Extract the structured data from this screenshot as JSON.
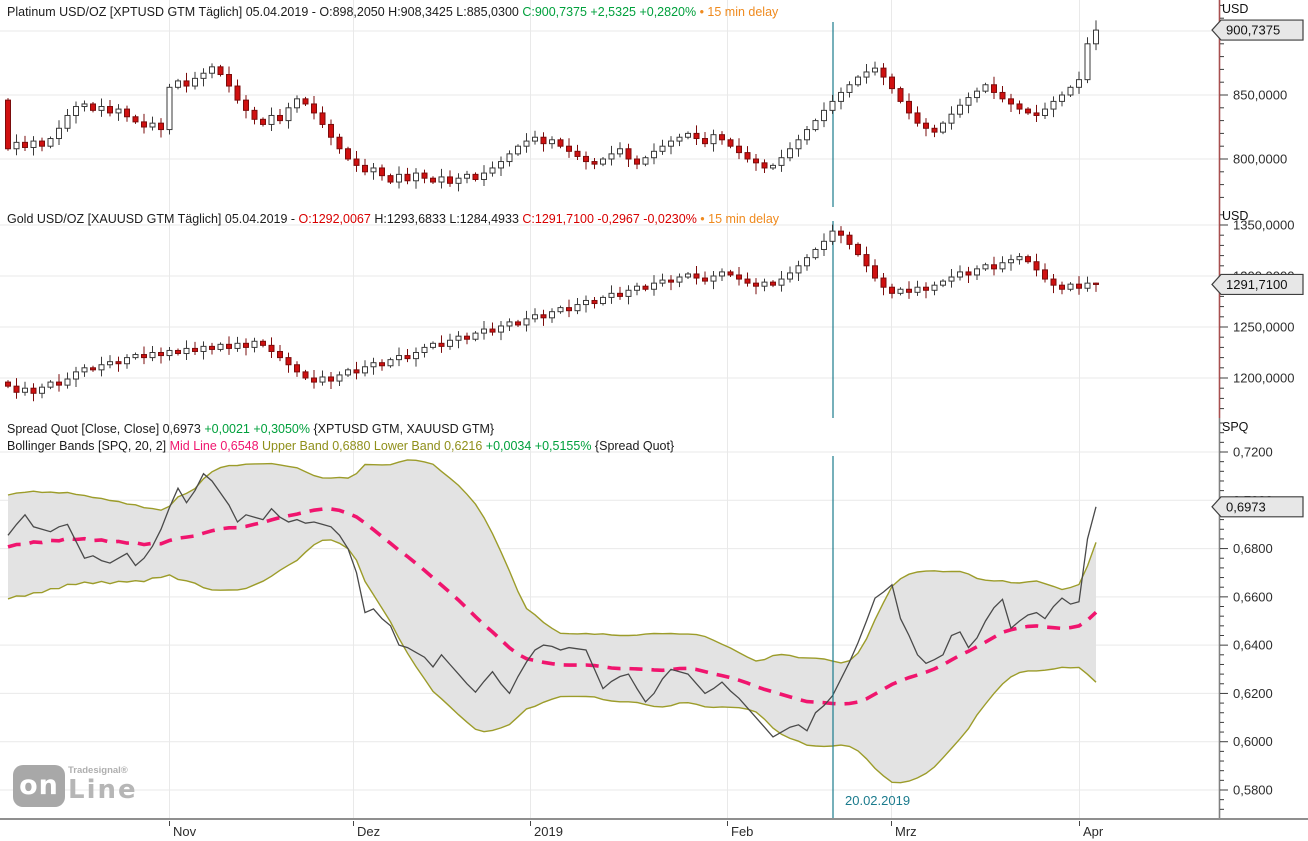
{
  "colors": {
    "black": "#1c1c1c",
    "green": "#00a03c",
    "red": "#d80000",
    "orange": "#ef8a1e",
    "pink": "#f0156e",
    "olive": "#8f8f1a",
    "teal": "#1b7b8d",
    "candle_up_fill": "#ffffff",
    "candle_up_stroke": "#3a3a3a",
    "candle_down_fill": "#d01010",
    "candle_down_stroke": "#7a0c0c",
    "band_fill": "#e3e3e3",
    "band_line": "#9c9c2a",
    "mid_line": "#f0156e",
    "spread_line": "#4a4a4a",
    "grid": "#e9e9e9",
    "axis_line_price": "#a85050",
    "axis_line_spread": "#808080",
    "tag_fill": "#e7e7e7",
    "tag_stroke": "#3f3f3f"
  },
  "panels": [
    {
      "name": "platinum",
      "unit": "USD",
      "header": [
        [
          {
            "t": "Platinum USD/OZ [XPTUSD GTM Täglich] 05.04.2019 - O:898,2050 H:908,3425 L:885,0300 ",
            "c": "black"
          },
          {
            "t": "C:900,7375 +2,5325 +0,2820%",
            "c": "green"
          },
          {
            "t": " • 15 min delay",
            "c": "orange"
          }
        ]
      ],
      "y_ticks": [
        {
          "v": 850,
          "label": "850,0000"
        },
        {
          "v": 800,
          "label": "800,0000"
        }
      ],
      "price_tag": {
        "value": 900.7375,
        "label": "900,7375"
      }
    },
    {
      "name": "gold",
      "unit": "USD",
      "header": [
        [
          {
            "t": "Gold USD/OZ [XAUUSD GTM Täglich] 05.04.2019 - ",
            "c": "black"
          },
          {
            "t": "O:1292,0067",
            "c": "red"
          },
          {
            "t": " H:1293,6833 L:1284,4933 ",
            "c": "black"
          },
          {
            "t": "C:1291,7100 -0,2967 -0,0230%",
            "c": "red"
          },
          {
            "t": " • 15 min delay",
            "c": "orange"
          }
        ]
      ],
      "y_ticks": [
        {
          "v": 1350,
          "label": "1350,0000"
        },
        {
          "v": 1300,
          "label": "1300,0000"
        },
        {
          "v": 1250,
          "label": "1250,0000"
        },
        {
          "v": 1200,
          "label": "1200,0000"
        }
      ],
      "price_tag": {
        "value": 1291.71,
        "label": "1291,7100"
      }
    },
    {
      "name": "spread",
      "unit": "SPQ",
      "header": [
        [
          {
            "t": "Spread Quot [Close, Close] 0,6973 ",
            "c": "black"
          },
          {
            "t": "+0,0021 +0,3050%",
            "c": "green"
          },
          {
            "t": " {XPTUSD GTM, XAUUSD GTM}",
            "c": "black"
          }
        ],
        [
          {
            "t": "Bollinger Bands [SPQ, 20, 2] ",
            "c": "black"
          },
          {
            "t": "Mid Line 0,6548",
            "c": "pink"
          },
          {
            "t": " Upper Band 0,6880",
            "c": "olive"
          },
          {
            "t": " Lower Band 0,6216",
            "c": "olive"
          },
          {
            "t": " +0,0034 +0,5155%",
            "c": "green"
          },
          {
            "t": " {Spread Quot}",
            "c": "black"
          }
        ]
      ],
      "y_ticks": [
        {
          "v": 0.72,
          "label": "0,7200"
        },
        {
          "v": 0.7,
          "label": "0,7000"
        },
        {
          "v": 0.68,
          "label": "0,6800"
        },
        {
          "v": 0.66,
          "label": "0,6600"
        },
        {
          "v": 0.64,
          "label": "0,6400"
        },
        {
          "v": 0.62,
          "label": "0,6200"
        },
        {
          "v": 0.6,
          "label": "0,6000"
        },
        {
          "v": 0.58,
          "label": "0,5800"
        }
      ],
      "price_tag": {
        "value": 0.6973,
        "label": "0,6973"
      }
    }
  ],
  "x_axis": {
    "labels": [
      "Nov",
      "Dez",
      "2019",
      "Feb",
      "Mrz",
      "Apr"
    ]
  },
  "event_line": {
    "label": "20.02.2019",
    "date": "20.02.2019"
  },
  "logo": {
    "badge": "on",
    "brand": "Tradesignal®",
    "word": "Line"
  },
  "chart_data": [
    {
      "type": "candlestick",
      "title": "Platinum USD/OZ",
      "symbol": "XPTUSD GTM",
      "interval": "Täglich",
      "date": "05.04.2019",
      "open": 898.205,
      "high": 908.3425,
      "low": 885.03,
      "close": 900.7375,
      "change": 2.5325,
      "change_pct": 0.282,
      "ylabel": "USD",
      "ylim": [
        763,
        907
      ],
      "x_tick_labels": [
        "Nov",
        "Dez",
        "2019",
        "Feb",
        "Mrz",
        "Apr"
      ],
      "first_open": 846,
      "closes": [
        808,
        813,
        809,
        814,
        810,
        816,
        824,
        834,
        841,
        843,
        838,
        841,
        836,
        839,
        833,
        829,
        825,
        828,
        823,
        856,
        861,
        857,
        863,
        867,
        872,
        866,
        857,
        846,
        838,
        831,
        827,
        834,
        830,
        840,
        847,
        843,
        836,
        827,
        817,
        808,
        800,
        795,
        790,
        793,
        787,
        782,
        788,
        783,
        789,
        785,
        782,
        786,
        781,
        785,
        788,
        784,
        789,
        793,
        798,
        804,
        810,
        814,
        817,
        812,
        815,
        810,
        806,
        802,
        798,
        796,
        800,
        804,
        808,
        800,
        796,
        801,
        806,
        810,
        814,
        817,
        820,
        816,
        812,
        819,
        815,
        810,
        805,
        800,
        797,
        793,
        795,
        801,
        808,
        815,
        823,
        830,
        838,
        845,
        852,
        858,
        864,
        868,
        871,
        864,
        855,
        845,
        836,
        828,
        824,
        821,
        828,
        835,
        842,
        848,
        853,
        858,
        852,
        847,
        843,
        839,
        836,
        834,
        839,
        845,
        850,
        856,
        862,
        890,
        900.7
      ]
    },
    {
      "type": "candlestick",
      "title": "Gold USD/OZ",
      "symbol": "XAUUSD GTM",
      "interval": "Täglich",
      "date": "05.04.2019",
      "open": 1292.0067,
      "high": 1293.6833,
      "low": 1284.4933,
      "close": 1291.71,
      "change": -0.2967,
      "change_pct": -0.023,
      "ylabel": "USD",
      "ylim": [
        1162,
        1353
      ],
      "x_tick_labels": [
        "Nov",
        "Dez",
        "2019",
        "Feb",
        "Mrz",
        "Apr"
      ],
      "first_open": 1196,
      "closes": [
        1192,
        1186,
        1190,
        1185,
        1191,
        1196,
        1193,
        1199,
        1206,
        1210,
        1208,
        1213,
        1216,
        1214,
        1220,
        1223,
        1220,
        1225,
        1222,
        1227,
        1224,
        1229,
        1226,
        1231,
        1228,
        1233,
        1229,
        1234,
        1230,
        1236,
        1232,
        1226,
        1220,
        1213,
        1206,
        1200,
        1196,
        1201,
        1197,
        1203,
        1208,
        1205,
        1211,
        1215,
        1212,
        1218,
        1222,
        1219,
        1225,
        1230,
        1234,
        1231,
        1237,
        1241,
        1238,
        1244,
        1248,
        1245,
        1251,
        1255,
        1252,
        1258,
        1262,
        1259,
        1265,
        1269,
        1266,
        1272,
        1276,
        1273,
        1279,
        1283,
        1280,
        1286,
        1290,
        1287,
        1293,
        1296,
        1294,
        1299,
        1302,
        1298,
        1295,
        1300,
        1304,
        1301,
        1297,
        1293,
        1290,
        1294,
        1291,
        1297,
        1303,
        1310,
        1318,
        1326,
        1334,
        1344,
        1340,
        1331,
        1321,
        1310,
        1298,
        1289,
        1283,
        1287,
        1284,
        1289,
        1286,
        1291,
        1295,
        1299,
        1304,
        1301,
        1307,
        1311,
        1307,
        1313,
        1316,
        1319,
        1314,
        1306,
        1297,
        1291,
        1287,
        1292,
        1288,
        1293,
        1291.7
      ]
    },
    {
      "type": "line",
      "title": "Spread Quot [Close, Close]",
      "instruments": "{XPTUSD GTM, XAUUSD GTM}",
      "value": 0.6973,
      "change": 0.0021,
      "change_pct": 0.305,
      "ylabel": "SPQ",
      "ylim": [
        0.5688,
        0.7333
      ],
      "x_tick_labels": [
        "Nov",
        "Dez",
        "2019",
        "Feb",
        "Mrz",
        "Apr"
      ],
      "bollinger": {
        "source": "SPQ",
        "period": 20,
        "mult": 2,
        "mid": 0.6548,
        "upper": 0.688,
        "lower": 0.6216,
        "change": 0.0034,
        "change_pct": 0.5155
      },
      "warmup_values": [
        0.67,
        0.692,
        0.67,
        0.692,
        0.67,
        0.692,
        0.67,
        0.692,
        0.67,
        0.692,
        0.67,
        0.692,
        0.67,
        0.692,
        0.67,
        0.692,
        0.67,
        0.692,
        0.67
      ],
      "values": [
        0.6855,
        0.69,
        0.694,
        0.689,
        0.688,
        0.687,
        0.689,
        0.69,
        0.683,
        0.676,
        0.677,
        0.675,
        0.674,
        0.676,
        0.678,
        0.673,
        0.676,
        0.681,
        0.688,
        0.697,
        0.705,
        0.699,
        0.704,
        0.711,
        0.708,
        0.703,
        0.698,
        0.691,
        0.694,
        0.693,
        0.692,
        0.6965,
        0.693,
        0.691,
        0.692,
        0.6905,
        0.691,
        0.69,
        0.689,
        0.6855,
        0.68,
        0.67,
        0.6535,
        0.655,
        0.651,
        0.648,
        0.64,
        0.639,
        0.637,
        0.635,
        0.631,
        0.636,
        0.632,
        0.628,
        0.624,
        0.6205,
        0.625,
        0.629,
        0.624,
        0.62,
        0.627,
        0.633,
        0.638,
        0.64,
        0.6395,
        0.638,
        0.639,
        0.6385,
        0.638,
        0.63,
        0.622,
        0.625,
        0.627,
        0.628,
        0.622,
        0.6165,
        0.62,
        0.626,
        0.63,
        0.629,
        0.628,
        0.624,
        0.62,
        0.622,
        0.6247,
        0.621,
        0.618,
        0.614,
        0.61,
        0.606,
        0.602,
        0.604,
        0.606,
        0.607,
        0.6045,
        0.612,
        0.615,
        0.619,
        0.626,
        0.633,
        0.641,
        0.65,
        0.6595,
        0.662,
        0.665,
        0.651,
        0.644,
        0.636,
        0.6325,
        0.634,
        0.636,
        0.644,
        0.6455,
        0.639,
        0.643,
        0.65,
        0.6555,
        0.659,
        0.647,
        0.65,
        0.6525,
        0.6535,
        0.651,
        0.656,
        0.6595,
        0.657,
        0.658,
        0.684,
        0.6973
      ]
    }
  ]
}
